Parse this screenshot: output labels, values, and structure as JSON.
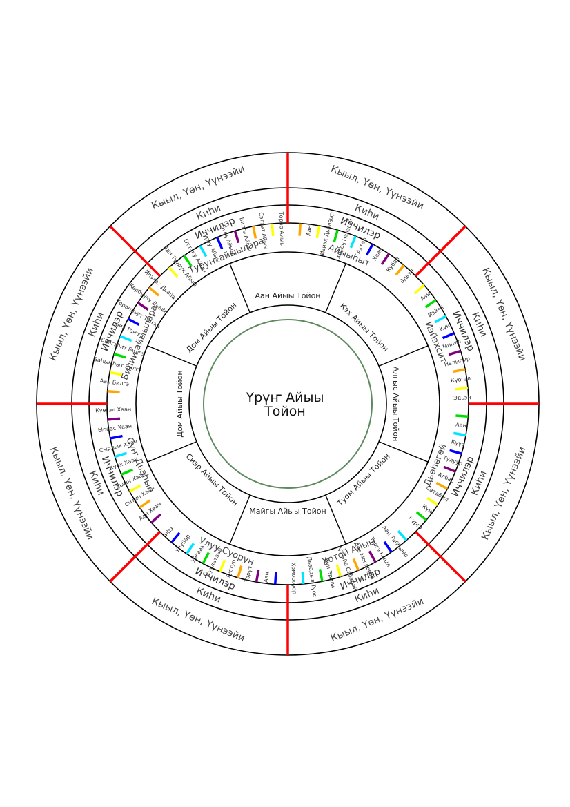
{
  "center": {
    "line1": "Үрүҥ Айыы",
    "line2": "Тойон"
  },
  "outer_label": "Кыыл, Үөн, Үүнээйи",
  "kihi_label": "Киһи",
  "ichchiler_label": "Иччилэр",
  "colors": {
    "ring": "#000000",
    "divider": "#ff0000",
    "core": "#5f8a5f",
    "label": "#333333",
    "bar_palette": [
      "#ffa500",
      "#ffff00",
      "#00dd00",
      "#00e5ff",
      "#0000ff",
      "#800080"
    ]
  },
  "sectors": [
    {
      "sector": "Айыыһыт",
      "aiyy": "Аан Айыы Тойон",
      "spirits": [
        "Аан",
        "Иэйэх Дьалҕыр",
        "Хороҕ Нэлэгэй",
        "Ахтар",
        "Хаан",
        "Кубай",
        "Эдьэн"
      ]
    },
    {
      "sector": "Иэйэхсит",
      "aiyy": "Кэх Айыы Тойон",
      "spirits": [
        "Аан",
        "Иэйэй",
        "Күн",
        "Минил",
        "Налыгыр",
        "Күөгэл",
        "Эдьэн"
      ]
    },
    {
      "sector": "Дьөһөгөй",
      "aiyy": "Алгыс Айыы Тойон",
      "spirits": [
        "Аан",
        "Күүс",
        "Тулуур",
        "Албас",
        "Сатабыл",
        "Күн",
        "Күргэ"
      ]
    },
    {
      "sector": "Хотой Айыы",
      "aiyy": "Туом Айыы Тойон",
      "spirits": [
        "Аан Тайбыыр",
        "Тэргэ Кыыл",
        "Ала Могдоҕой",
        "Аргыйа Сабарай",
        "Күн Эрили",
        "Дьаадыл Туос",
        "Хомороуор"
      ]
    },
    {
      "sector": "Улуу Суорун",
      "aiyy": "Майгы Айыы Тойон",
      "spirits": [
        "Аан",
        "Тэрүт",
        "Тустур",
        "Куулатаар",
        "Уйгаах",
        "Улуйар",
        "Иһэ"
      ]
    },
    {
      "sector": "Сүҥ Дьаһын",
      "aiyy": "Сиэр Айыы Тойон",
      "spirits": [
        "Аан Хаан",
        "Ситии Хаан",
        "Тыын Хаан",
        "Күөх Хаан",
        "Сырдык Хаан",
        "Ыраас Хаан",
        "Күөгэл Хаан"
      ]
    },
    {
      "sector": "Билии айыылара",
      "aiyy": "Дом Айыы Тойон",
      "spirits": [
        "Аан Билгэ",
        "Баһыыһыт Билгэ",
        "Билгэһит Билгэ",
        "Биэ Таҥха",
        "Торонньут Таҥха",
        "Көрбүүчү Дьайа",
        "Иһэлэх Дьайа"
      ]
    },
    {
      "sector": "Туруҥ айыылара",
      "aiyy": "Дом Айыы Тойон",
      "spirits": [
        "Аан Түүрүк Айыы",
        "Оттоку Айыы",
        "Туруу Айыы",
        "Буоҕ Айыы",
        "Билгэ Айыы",
        "Сэлээт Айыы",
        "Торор Айыы"
      ]
    }
  ]
}
